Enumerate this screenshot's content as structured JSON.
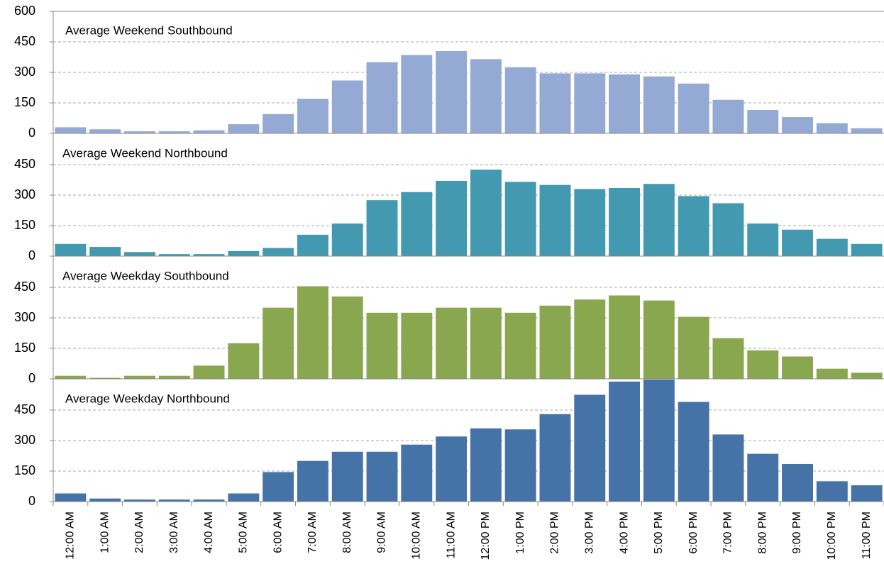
{
  "chart_data": [
    {
      "type": "bar",
      "title": "Average Weekend Southbound",
      "color": "#94a9d3",
      "ylim": [
        0,
        600
      ],
      "yticks": [
        0,
        150,
        300,
        450,
        600
      ],
      "grid": true,
      "values": [
        30,
        20,
        10,
        10,
        15,
        45,
        95,
        170,
        260,
        350,
        385,
        405,
        365,
        325,
        295,
        295,
        290,
        280,
        245,
        165,
        115,
        80,
        50,
        25
      ]
    },
    {
      "type": "bar",
      "title": "Average Weekend Northbound",
      "color": "#4399b0",
      "ylim": [
        0,
        600
      ],
      "yticks": [
        0,
        150,
        300,
        450
      ],
      "grid": true,
      "values": [
        60,
        45,
        20,
        10,
        10,
        25,
        40,
        105,
        160,
        275,
        315,
        370,
        425,
        365,
        350,
        330,
        335,
        355,
        295,
        260,
        160,
        130,
        85,
        60
      ]
    },
    {
      "type": "bar",
      "title": "Average Weekday Southbound",
      "color": "#88a74e",
      "ylim": [
        0,
        600
      ],
      "yticks": [
        0,
        150,
        300,
        450
      ],
      "grid": true,
      "values": [
        15,
        5,
        15,
        15,
        65,
        175,
        350,
        455,
        405,
        325,
        325,
        350,
        350,
        325,
        360,
        390,
        410,
        385,
        305,
        200,
        140,
        110,
        50,
        30
      ]
    },
    {
      "type": "bar",
      "title": "Average Weekday Northbound",
      "color": "#4573a7",
      "ylim": [
        0,
        600
      ],
      "yticks": [
        0,
        150,
        300,
        450
      ],
      "grid": true,
      "categories": [
        "12:00 AM",
        "1:00 AM",
        "2:00 AM",
        "3:00 AM",
        "4:00 AM",
        "5:00 AM",
        "6:00 AM",
        "7:00 AM",
        "8:00 AM",
        "9:00 AM",
        "10:00 AM",
        "11:00 AM",
        "12:00 PM",
        "1:00 PM",
        "2:00 PM",
        "3:00 PM",
        "4:00 PM",
        "5:00 PM",
        "6:00 PM",
        "7:00 PM",
        "8:00 PM",
        "9:00 PM",
        "10:00 PM",
        "11:00 PM"
      ],
      "values": [
        40,
        15,
        10,
        10,
        10,
        40,
        145,
        200,
        245,
        245,
        280,
        320,
        360,
        355,
        430,
        525,
        590,
        600,
        490,
        330,
        235,
        185,
        100,
        80
      ]
    }
  ]
}
